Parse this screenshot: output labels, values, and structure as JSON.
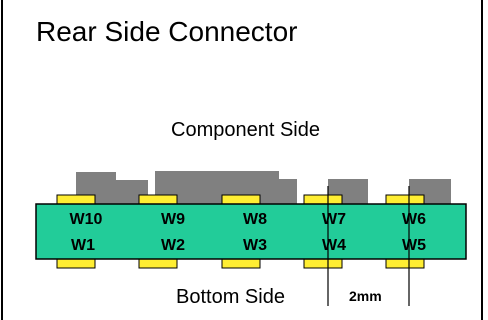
{
  "title": "Rear Side Connector",
  "labels": {
    "component_side": "Component Side",
    "bottom_side": "Bottom Side",
    "pitch": "2mm"
  },
  "pads": {
    "top_row": [
      "W10",
      "W9",
      "W8",
      "W7",
      "W6"
    ],
    "bottom_row": [
      "W1",
      "W2",
      "W3",
      "W4",
      "W5"
    ]
  },
  "colors": {
    "board": "#22cc99",
    "pad": "#ffee33",
    "component": "#808080",
    "outline": "#000000"
  }
}
